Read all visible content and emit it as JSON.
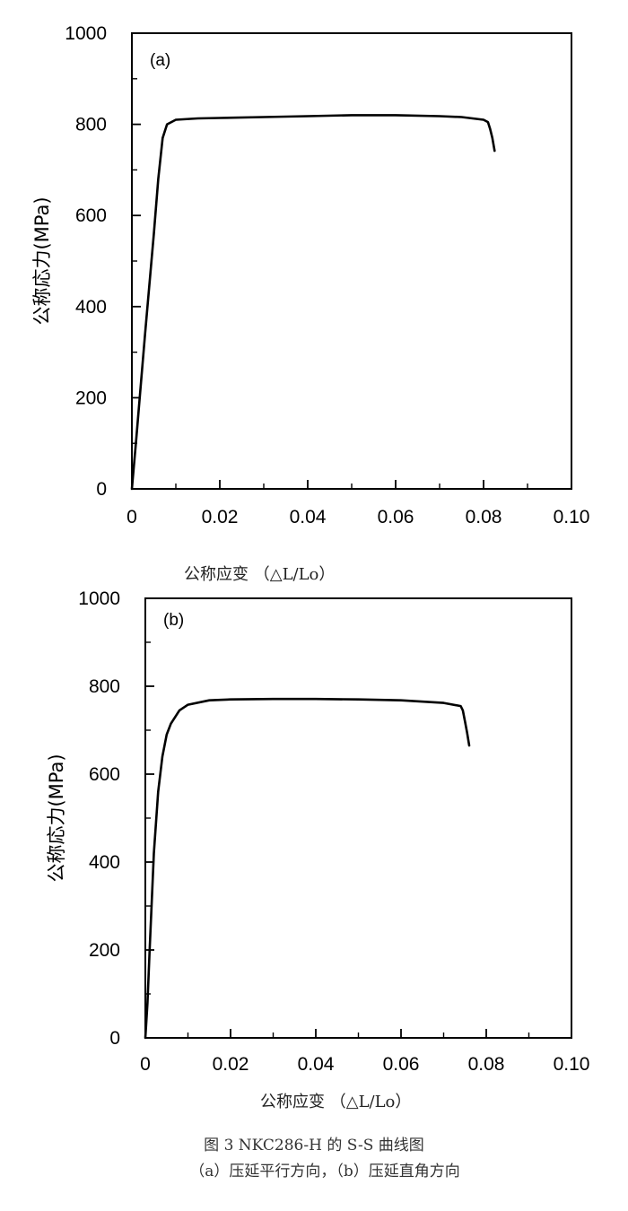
{
  "chart_data": [
    {
      "type": "line",
      "panel_label": "(a)",
      "xlabel": "公称应变 （△L/Lo）",
      "ylabel": "公称応力(MPa)",
      "xlim": [
        0,
        0.1
      ],
      "ylim": [
        0,
        1000
      ],
      "xticks": [
        "0",
        "0.02",
        "0.04",
        "0.06",
        "0.08",
        "0.10"
      ],
      "yticks": [
        "0",
        "200",
        "400",
        "600",
        "800",
        "1000"
      ],
      "grid": false,
      "series": [
        {
          "x": [
            0,
            0.001,
            0.003,
            0.005,
            0.006,
            0.007,
            0.008,
            0.01,
            0.015,
            0.02,
            0.03,
            0.04,
            0.05,
            0.06,
            0.07,
            0.075,
            0.08,
            0.081,
            0.0815,
            0.082,
            0.0825
          ],
          "y": [
            0,
            110,
            340,
            560,
            680,
            770,
            800,
            810,
            813,
            814,
            816,
            818,
            820,
            820,
            818,
            816,
            810,
            805,
            790,
            770,
            742
          ]
        }
      ]
    },
    {
      "type": "line",
      "panel_label": "(b)",
      "xlabel": "公称应变 （△L/Lo）",
      "ylabel": "公称応力(MPa)",
      "xlim": [
        0,
        0.1
      ],
      "ylim": [
        0,
        1000
      ],
      "xticks": [
        "0",
        "0.02",
        "0.04",
        "0.06",
        "0.08",
        "0.10"
      ],
      "yticks": [
        "0",
        "200",
        "400",
        "600",
        "800",
        "1000"
      ],
      "grid": false,
      "series": [
        {
          "x": [
            0,
            0.0005,
            0.001,
            0.002,
            0.003,
            0.004,
            0.005,
            0.006,
            0.008,
            0.01,
            0.015,
            0.02,
            0.03,
            0.04,
            0.05,
            0.06,
            0.07,
            0.074,
            0.0745,
            0.075,
            0.0755,
            0.076
          ],
          "y": [
            0,
            80,
            200,
            420,
            560,
            640,
            690,
            715,
            745,
            758,
            768,
            770,
            771,
            771,
            770,
            768,
            762,
            755,
            745,
            720,
            695,
            665
          ]
        }
      ]
    }
  ],
  "caption": {
    "line1": "图 3 NKC286-H 的 S-S 曲线图",
    "line2": "（a）压延平行方向，（b）压延直角方向"
  }
}
